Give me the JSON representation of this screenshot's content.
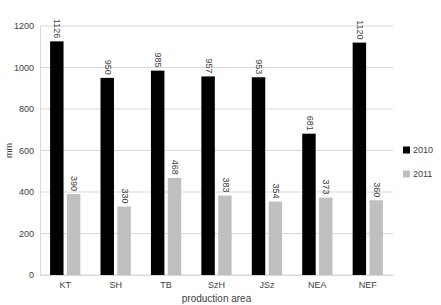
{
  "chart_data": {
    "type": "bar",
    "x_label": "production area",
    "y_label": "mm",
    "categories": [
      "KT",
      "SH",
      "TB",
      "SzH",
      "JSz",
      "NEA",
      "NEF"
    ],
    "series": [
      {
        "name": "2010",
        "color": "#000000",
        "values": [
          1126,
          950,
          985,
          957,
          953,
          681,
          1120
        ]
      },
      {
        "name": "2011",
        "color": "#bfbfbf",
        "values": [
          390,
          330,
          468,
          383,
          354,
          373,
          360
        ]
      }
    ],
    "ylim": [
      0,
      1200
    ],
    "yticks": [
      0,
      200,
      400,
      600,
      800,
      1000,
      1200
    ],
    "grid": true,
    "legend": "right",
    "data_labels": true
  }
}
